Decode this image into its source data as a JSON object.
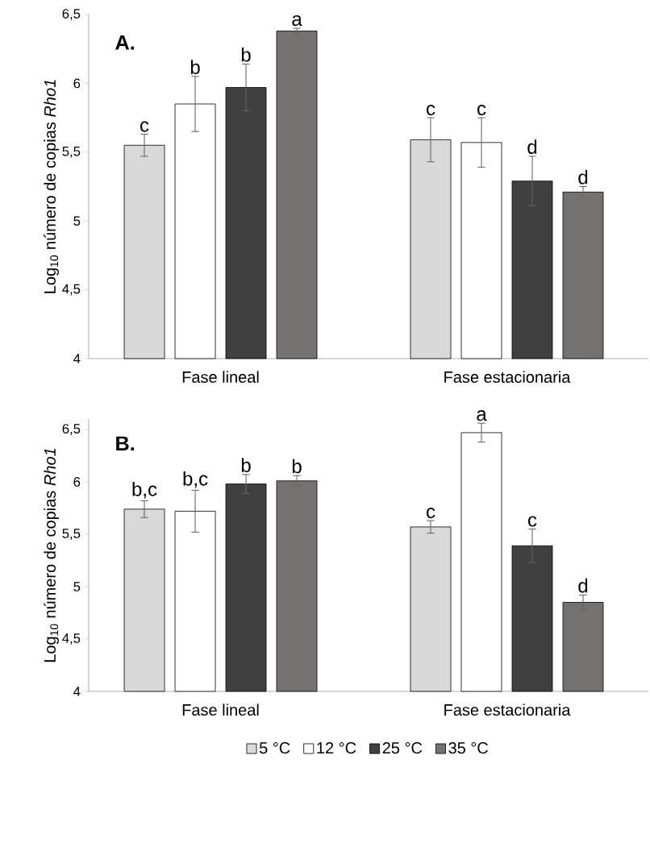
{
  "chart_data": [
    {
      "type": "bar",
      "annotations": [
        "A."
      ],
      "ylabel": "Log$_{10}$ número de copias *Rho1*",
      "categories": [
        "Fase lineal",
        "Fase estacionaria"
      ],
      "ylim": [
        4,
        6.5
      ],
      "yticks": [
        4,
        {
          "value": 4.5,
          "label": "4,5"
        },
        5,
        {
          "value": 5.5,
          "label": "5,5"
        },
        6,
        {
          "value": 6.5,
          "label": "6,5"
        }
      ],
      "legend": false,
      "series": [
        {
          "color": "#d9d9d9",
          "values": [
            5.55,
            5.59
          ],
          "errors": [
            0.08,
            0.16
          ],
          "value_labels": [
            "c",
            "c"
          ]
        },
        {
          "color": "#ffffff",
          "values": [
            5.85,
            5.57
          ],
          "errors": [
            0.2,
            0.18
          ],
          "value_labels": [
            "b",
            "c"
          ]
        },
        {
          "color": "#404040",
          "values": [
            5.97,
            5.29
          ],
          "errors": [
            0.17,
            0.18
          ],
          "value_labels": [
            "b",
            "d"
          ]
        },
        {
          "color": "#767171",
          "values": [
            6.38,
            5.21
          ],
          "errors": [
            0.02,
            0.04
          ],
          "value_labels": [
            "a",
            "d"
          ]
        }
      ]
    },
    {
      "type": "bar",
      "annotations": [
        "B."
      ],
      "ylabel": "Log$_{10}$ número de copias *Rho1*",
      "categories": [
        "Fase lineal",
        "Fase estacionaria"
      ],
      "ylim": [
        4,
        6.6
      ],
      "yticks": [
        4,
        {
          "value": 4.5,
          "label": "4,5"
        },
        5,
        {
          "value": 5.5,
          "label": "5,5"
        },
        6,
        {
          "value": 6.5,
          "label": "6,5"
        }
      ],
      "legend": "bottom",
      "series": [
        {
          "name": "5 °C",
          "color": "#d9d9d9",
          "values": [
            5.74,
            5.57
          ],
          "errors": [
            0.08,
            0.06
          ],
          "value_labels": [
            "b,c",
            "c"
          ]
        },
        {
          "name": "12 °C",
          "color": "#ffffff",
          "values": [
            5.72,
            6.47
          ],
          "errors": [
            0.2,
            0.09
          ],
          "value_labels": [
            "b,c",
            "a"
          ]
        },
        {
          "name": "25 °C",
          "color": "#404040",
          "values": [
            5.98,
            5.39
          ],
          "errors": [
            0.09,
            0.16
          ],
          "value_labels": [
            "b",
            "c"
          ]
        },
        {
          "name": "35 °C",
          "color": "#767171",
          "values": [
            6.01,
            4.85
          ],
          "errors": [
            0.05,
            0.07
          ],
          "value_labels": [
            "b",
            "d"
          ]
        }
      ]
    }
  ]
}
